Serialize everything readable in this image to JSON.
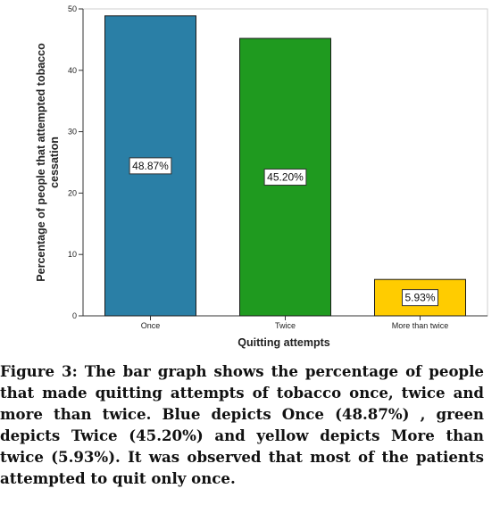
{
  "chart_data": {
    "type": "bar",
    "categories": [
      "Once",
      "Twice",
      "More than twice"
    ],
    "values": [
      48.87,
      45.2,
      5.93
    ],
    "data_labels": [
      "48.87%",
      "45.20%",
      "5.93%"
    ],
    "colors": [
      "#2a7fa6",
      "#1f9a1f",
      "#ffcc00"
    ],
    "title": "",
    "xlabel": "Quitting attempts",
    "ylabel_lines": [
      "Percentage of people that attempted tobacco",
      "cessation"
    ],
    "yticks": [
      0,
      10,
      20,
      30,
      40,
      50
    ],
    "ylim": [
      0,
      50
    ],
    "grid": false,
    "legend": "none"
  },
  "caption": "Figure 3: The bar graph shows the percentage of people that made quitting attempts of tobacco once, twice and more than twice. Blue depicts Once (48.87%) , green depicts Twice (45.20%) and yellow depicts More than twice (5.93%). It was observed that most of the patients attempted to quit only once."
}
